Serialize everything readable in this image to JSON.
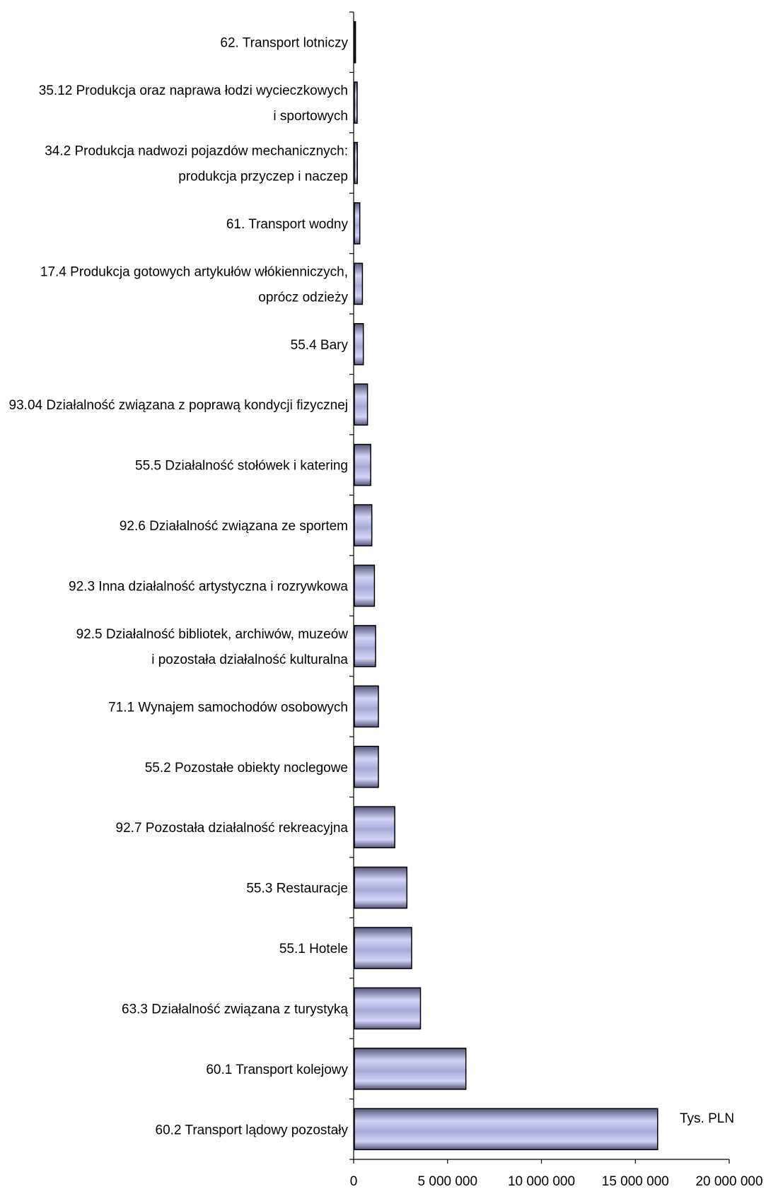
{
  "chart_data": {
    "type": "bar",
    "orientation": "horizontal",
    "categories": [
      [
        "62. Transport lotniczy"
      ],
      [
        "35.12 Produkcja oraz naprawa łodzi wycieczkowych",
        "i sportowych"
      ],
      [
        "34.2 Produkcja nadwozi pojazdów mechanicznych:",
        "produkcja przyczep i naczep"
      ],
      [
        "61. Transport wodny"
      ],
      [
        "17.4 Produkcja gotowych artykułów włókienniczych,",
        "oprócz odzieży"
      ],
      [
        "55.4 Bary"
      ],
      [
        "93.04 Działalność związana z poprawą kondycji fizycznej"
      ],
      [
        "55.5 Działalność stołówek i katering"
      ],
      [
        "92.6 Działalność związana ze sportem"
      ],
      [
        "92.3 Inna działalność artystyczna i rozrywkowa"
      ],
      [
        "92.5 Działalność bibliotek, archiwów, muzeów",
        "i pozostała działalność kulturalna"
      ],
      [
        "71.1 Wynajem samochodów osobowych"
      ],
      [
        "55.2 Pozostałe obiekty noclegowe"
      ],
      [
        "92.7 Pozostała działalność rekreacyjna"
      ],
      [
        "55.3 Restauracje"
      ],
      [
        "55.1 Hotele"
      ],
      [
        "63.3 Działalność związana z turystyką"
      ],
      [
        "60.1 Transport kolejowy"
      ],
      [
        "60.2 Transport lądowy pozostały"
      ]
    ],
    "values": [
      60000,
      150000,
      160000,
      290000,
      430000,
      480000,
      700000,
      870000,
      930000,
      1070000,
      1130000,
      1280000,
      1280000,
      2150000,
      2800000,
      3050000,
      3520000,
      5940000,
      16150000
    ],
    "xlim": [
      0,
      20000000
    ],
    "x_ticks": [
      0,
      5000000,
      10000000,
      15000000,
      20000000
    ],
    "x_tick_labels": [
      "0",
      "5 000 000",
      "10 000 000",
      "15 000 000",
      "20 000 000"
    ],
    "unit_label": "Tys. PLN",
    "grid": false,
    "legend": "none",
    "colors": {
      "bar_light": "#d4d4f6",
      "bar_mid": "#a8a8d8",
      "bar_dark": "#55557a",
      "bar_outline": "#000000",
      "axis": "#000000"
    }
  }
}
